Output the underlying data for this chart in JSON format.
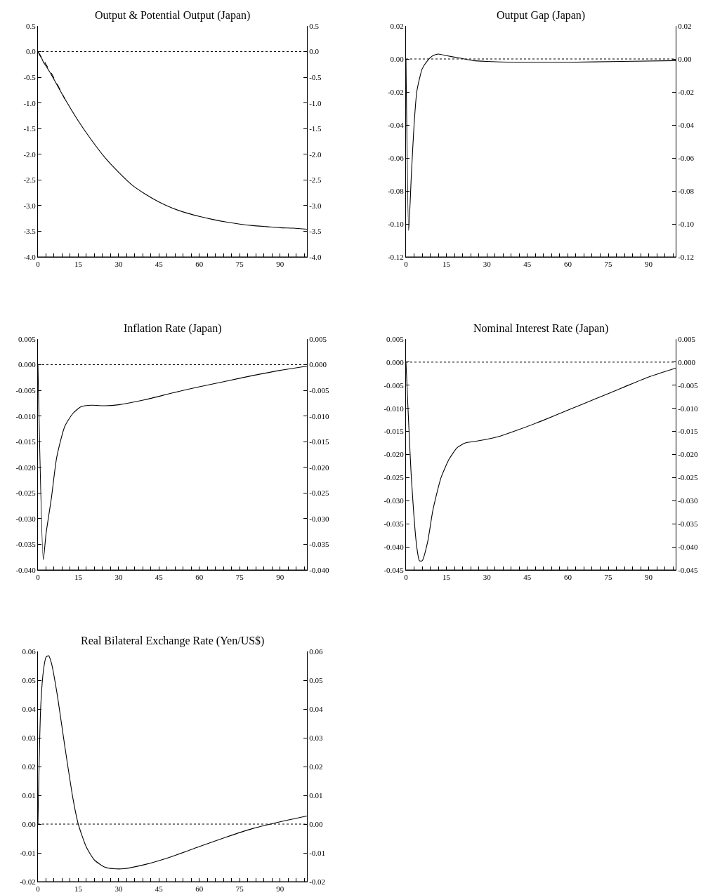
{
  "chart_data": [
    {
      "type": "line",
      "title": "Output & Potential Output (Japan)",
      "xlim": [
        0,
        100
      ],
      "xticks": [
        0,
        {
          "value": 3,
          "label": null
        },
        {
          "value": 6,
          "label": null
        },
        {
          "value": 9,
          "label": null
        },
        {
          "value": 12,
          "label": null
        },
        15,
        {
          "value": 18,
          "label": null
        },
        {
          "value": 21,
          "label": null
        },
        {
          "value": 24,
          "label": null
        },
        {
          "value": 27,
          "label": null
        },
        30,
        {
          "value": 33,
          "label": null
        },
        {
          "value": 36,
          "label": null
        },
        {
          "value": 39,
          "label": null
        },
        {
          "value": 42,
          "label": null
        },
        45,
        {
          "value": 48,
          "label": null
        },
        {
          "value": 51,
          "label": null
        },
        {
          "value": 54,
          "label": null
        },
        {
          "value": 57,
          "label": null
        },
        60,
        {
          "value": 63,
          "label": null
        },
        {
          "value": 66,
          "label": null
        },
        {
          "value": 69,
          "label": null
        },
        {
          "value": 72,
          "label": null
        },
        75,
        {
          "value": 78,
          "label": null
        },
        {
          "value": 81,
          "label": null
        },
        {
          "value": 84,
          "label": null
        },
        {
          "value": 87,
          "label": null
        },
        90,
        {
          "value": 93,
          "label": null
        },
        {
          "value": 96,
          "label": null
        },
        {
          "value": 99,
          "label": null
        }
      ],
      "ylim": [
        -4.0,
        0.5
      ],
      "yticks": [
        {
          "value": -4,
          "label": "-4.0"
        },
        {
          "value": -3.5,
          "label": "-3.5"
        },
        {
          "value": -3,
          "label": "-3.0"
        },
        {
          "value": -2.5,
          "label": "-2.5"
        },
        {
          "value": -2,
          "label": "-2.0"
        },
        {
          "value": -1.5,
          "label": "-1.5"
        },
        {
          "value": -1,
          "label": "-1.0"
        },
        {
          "value": -0.5,
          "label": "-0.5"
        },
        {
          "value": 0,
          "label": "0.0"
        },
        0.5
      ],
      "y2lim": [
        -4.0,
        0.5
      ],
      "y2ticks": [
        {
          "value": -4,
          "label": "-4.0"
        },
        {
          "value": -3.5,
          "label": "-3.5"
        },
        {
          "value": -3,
          "label": "-3.0"
        },
        {
          "value": -2.5,
          "label": "-2.5"
        },
        {
          "value": -2,
          "label": "-2.0"
        },
        {
          "value": -1.5,
          "label": "-1.5"
        },
        {
          "value": -1,
          "label": "-1.0"
        },
        {
          "value": -0.5,
          "label": "-0.5"
        },
        {
          "value": 0,
          "label": "0.0"
        },
        0.5
      ],
      "ref_lines": [
        {
          "axis": "y",
          "value": 0,
          "line_style": "dotted",
          "color": "#000000"
        }
      ],
      "series": [
        {
          "color": "#000000",
          "line_style": "solid",
          "x": [
            0,
            1,
            2,
            3,
            5,
            10,
            15,
            20,
            25,
            30,
            35,
            40,
            45,
            50,
            55,
            60,
            65,
            70,
            75,
            80,
            85,
            90,
            95,
            100
          ],
          "values": [
            0,
            -0.08,
            -0.2,
            -0.28,
            -0.45,
            -0.92,
            -1.35,
            -1.73,
            -2.07,
            -2.35,
            -2.6,
            -2.78,
            -2.93,
            -3.05,
            -3.14,
            -3.21,
            -3.27,
            -3.32,
            -3.36,
            -3.39,
            -3.41,
            -3.43,
            -3.44,
            -3.46
          ]
        },
        {
          "color": "#000000",
          "line_style": "dashed",
          "x": [
            0,
            1,
            2,
            3,
            5,
            10
          ],
          "values": [
            0,
            -0.1,
            -0.15,
            -0.25,
            -0.42,
            -0.92
          ]
        }
      ]
    },
    {
      "type": "line",
      "title": "Output Gap (Japan)",
      "xlim": [
        0,
        100
      ],
      "xticks": [
        0,
        {
          "value": 3,
          "label": null
        },
        {
          "value": 6,
          "label": null
        },
        {
          "value": 9,
          "label": null
        },
        {
          "value": 12,
          "label": null
        },
        15,
        {
          "value": 18,
          "label": null
        },
        {
          "value": 21,
          "label": null
        },
        {
          "value": 24,
          "label": null
        },
        {
          "value": 27,
          "label": null
        },
        30,
        {
          "value": 33,
          "label": null
        },
        {
          "value": 36,
          "label": null
        },
        {
          "value": 39,
          "label": null
        },
        {
          "value": 42,
          "label": null
        },
        45,
        {
          "value": 48,
          "label": null
        },
        {
          "value": 51,
          "label": null
        },
        {
          "value": 54,
          "label": null
        },
        {
          "value": 57,
          "label": null
        },
        60,
        {
          "value": 63,
          "label": null
        },
        {
          "value": 66,
          "label": null
        },
        {
          "value": 69,
          "label": null
        },
        {
          "value": 72,
          "label": null
        },
        75,
        {
          "value": 78,
          "label": null
        },
        {
          "value": 81,
          "label": null
        },
        {
          "value": 84,
          "label": null
        },
        {
          "value": 87,
          "label": null
        },
        90,
        {
          "value": 93,
          "label": null
        },
        {
          "value": 96,
          "label": null
        },
        {
          "value": 99,
          "label": null
        }
      ],
      "ylim": [
        -0.12,
        0.02
      ],
      "yticks": [
        {
          "value": -0.12,
          "label": "-0.12"
        },
        {
          "value": -0.1,
          "label": "-0.10"
        },
        {
          "value": -0.08,
          "label": "-0.08"
        },
        {
          "value": -0.06,
          "label": "-0.06"
        },
        {
          "value": -0.04,
          "label": "-0.04"
        },
        {
          "value": -0.02,
          "label": "-0.02"
        },
        {
          "value": 0,
          "label": "0.00"
        },
        0.02
      ],
      "y2lim": [
        -0.12,
        0.02
      ],
      "y2ticks": [
        {
          "value": -0.12,
          "label": "-0.12"
        },
        {
          "value": -0.1,
          "label": "-0.10"
        },
        {
          "value": -0.08,
          "label": "-0.08"
        },
        {
          "value": -0.06,
          "label": "-0.06"
        },
        {
          "value": -0.04,
          "label": "-0.04"
        },
        {
          "value": -0.02,
          "label": "-0.02"
        },
        {
          "value": 0,
          "label": "0.00"
        },
        0.02
      ],
      "ref_lines": [
        {
          "axis": "y",
          "value": 0,
          "line_style": "dotted",
          "color": "#000000"
        }
      ],
      "series": [
        {
          "color": "#000000",
          "x": [
            0,
            1,
            2,
            3,
            4,
            5,
            6,
            8,
            10,
            12,
            15,
            20,
            25,
            30,
            40,
            60,
            80,
            100
          ],
          "values": [
            0,
            -0.104,
            -0.07,
            -0.04,
            -0.02,
            -0.012,
            -0.006,
            -0.001,
            0.002,
            0.003,
            0.002,
            0.0005,
            -0.001,
            -0.0015,
            -0.002,
            -0.002,
            -0.0015,
            -0.001
          ]
        }
      ]
    },
    {
      "type": "line",
      "title": "Inflation Rate (Japan)",
      "xlim": [
        0,
        100
      ],
      "xticks": [
        0,
        {
          "value": 3,
          "label": null
        },
        {
          "value": 6,
          "label": null
        },
        {
          "value": 9,
          "label": null
        },
        {
          "value": 12,
          "label": null
        },
        15,
        {
          "value": 18,
          "label": null
        },
        {
          "value": 21,
          "label": null
        },
        {
          "value": 24,
          "label": null
        },
        {
          "value": 27,
          "label": null
        },
        30,
        {
          "value": 33,
          "label": null
        },
        {
          "value": 36,
          "label": null
        },
        {
          "value": 39,
          "label": null
        },
        {
          "value": 42,
          "label": null
        },
        45,
        {
          "value": 48,
          "label": null
        },
        {
          "value": 51,
          "label": null
        },
        {
          "value": 54,
          "label": null
        },
        {
          "value": 57,
          "label": null
        },
        60,
        {
          "value": 63,
          "label": null
        },
        {
          "value": 66,
          "label": null
        },
        {
          "value": 69,
          "label": null
        },
        {
          "value": 72,
          "label": null
        },
        75,
        {
          "value": 78,
          "label": null
        },
        {
          "value": 81,
          "label": null
        },
        {
          "value": 84,
          "label": null
        },
        {
          "value": 87,
          "label": null
        },
        90,
        {
          "value": 93,
          "label": null
        },
        {
          "value": 96,
          "label": null
        },
        {
          "value": 99,
          "label": null
        }
      ],
      "ylim": [
        -0.04,
        0.005
      ],
      "yticks": [
        {
          "value": -0.04,
          "label": "-0.040"
        },
        {
          "value": -0.035,
          "label": "-0.035"
        },
        {
          "value": -0.03,
          "label": "-0.030"
        },
        {
          "value": -0.025,
          "label": "-0.025"
        },
        {
          "value": -0.02,
          "label": "-0.020"
        },
        {
          "value": -0.015,
          "label": "-0.015"
        },
        {
          "value": -0.01,
          "label": "-0.010"
        },
        {
          "value": -0.005,
          "label": "-0.005"
        },
        {
          "value": 0,
          "label": "0.000"
        },
        0.005
      ],
      "y2lim": [
        -0.04,
        0.005
      ],
      "y2ticks": [
        {
          "value": -0.04,
          "label": "-0.040"
        },
        {
          "value": -0.035,
          "label": "-0.035"
        },
        {
          "value": -0.03,
          "label": "-0.030"
        },
        {
          "value": -0.025,
          "label": "-0.025"
        },
        {
          "value": -0.02,
          "label": "-0.020"
        },
        {
          "value": -0.015,
          "label": "-0.015"
        },
        {
          "value": -0.01,
          "label": "-0.010"
        },
        {
          "value": -0.005,
          "label": "-0.005"
        },
        {
          "value": 0,
          "label": "0.000"
        },
        0.005
      ],
      "ref_lines": [
        {
          "axis": "y",
          "value": 0,
          "line_style": "dotted",
          "color": "#000000"
        }
      ],
      "series": [
        {
          "color": "#000000",
          "x": [
            0,
            2,
            3,
            5,
            7,
            10,
            13,
            16,
            20,
            25,
            30,
            40,
            50,
            60,
            70,
            80,
            90,
            100
          ],
          "values": [
            0,
            -0.038,
            -0.033,
            -0.026,
            -0.018,
            -0.012,
            -0.0095,
            -0.0082,
            -0.0079,
            -0.008,
            -0.0078,
            -0.0068,
            -0.0055,
            -0.0043,
            -0.0032,
            -0.0021,
            -0.0011,
            -0.0003
          ]
        }
      ]
    },
    {
      "type": "line",
      "title": "Nominal Interest Rate (Japan)",
      "xlim": [
        0,
        100
      ],
      "xticks": [
        0,
        {
          "value": 3,
          "label": null
        },
        {
          "value": 6,
          "label": null
        },
        {
          "value": 9,
          "label": null
        },
        {
          "value": 12,
          "label": null
        },
        15,
        {
          "value": 18,
          "label": null
        },
        {
          "value": 21,
          "label": null
        },
        {
          "value": 24,
          "label": null
        },
        {
          "value": 27,
          "label": null
        },
        30,
        {
          "value": 33,
          "label": null
        },
        {
          "value": 36,
          "label": null
        },
        {
          "value": 39,
          "label": null
        },
        {
          "value": 42,
          "label": null
        },
        45,
        {
          "value": 48,
          "label": null
        },
        {
          "value": 51,
          "label": null
        },
        {
          "value": 54,
          "label": null
        },
        {
          "value": 57,
          "label": null
        },
        60,
        {
          "value": 63,
          "label": null
        },
        {
          "value": 66,
          "label": null
        },
        {
          "value": 69,
          "label": null
        },
        {
          "value": 72,
          "label": null
        },
        75,
        {
          "value": 78,
          "label": null
        },
        {
          "value": 81,
          "label": null
        },
        {
          "value": 84,
          "label": null
        },
        {
          "value": 87,
          "label": null
        },
        90,
        {
          "value": 93,
          "label": null
        },
        {
          "value": 96,
          "label": null
        },
        {
          "value": 99,
          "label": null
        }
      ],
      "ylim": [
        -0.045,
        0.005
      ],
      "yticks": [
        {
          "value": -0.045,
          "label": "-0.045"
        },
        {
          "value": -0.04,
          "label": "-0.040"
        },
        {
          "value": -0.035,
          "label": "-0.035"
        },
        {
          "value": -0.03,
          "label": "-0.030"
        },
        {
          "value": -0.025,
          "label": "-0.025"
        },
        {
          "value": -0.02,
          "label": "-0.020"
        },
        {
          "value": -0.015,
          "label": "-0.015"
        },
        {
          "value": -0.01,
          "label": "-0.010"
        },
        {
          "value": -0.005,
          "label": "-0.005"
        },
        {
          "value": 0,
          "label": "0.000"
        },
        0.005
      ],
      "y2lim": [
        -0.045,
        0.005
      ],
      "y2ticks": [
        {
          "value": -0.045,
          "label": "-0.045"
        },
        {
          "value": -0.04,
          "label": "-0.040"
        },
        {
          "value": -0.035,
          "label": "-0.035"
        },
        {
          "value": -0.03,
          "label": "-0.030"
        },
        {
          "value": -0.025,
          "label": "-0.025"
        },
        {
          "value": -0.02,
          "label": "-0.020"
        },
        {
          "value": -0.015,
          "label": "-0.015"
        },
        {
          "value": -0.01,
          "label": "-0.010"
        },
        {
          "value": -0.005,
          "label": "-0.005"
        },
        {
          "value": 0,
          "label": "0.000"
        },
        0.005
      ],
      "ref_lines": [
        {
          "axis": "y",
          "value": 0,
          "line_style": "dotted",
          "color": "#000000"
        }
      ],
      "series": [
        {
          "color": "#000000",
          "x": [
            0,
            2,
            4,
            5,
            6,
            8,
            10,
            13,
            16,
            19,
            22,
            25,
            30,
            35,
            40,
            50,
            60,
            70,
            80,
            90,
            100
          ],
          "values": [
            0,
            -0.025,
            -0.04,
            -0.043,
            -0.043,
            -0.039,
            -0.032,
            -0.025,
            -0.021,
            -0.0185,
            -0.0175,
            -0.0172,
            -0.0167,
            -0.016,
            -0.015,
            -0.0128,
            -0.0104,
            -0.008,
            -0.0056,
            -0.0032,
            -0.0013
          ]
        }
      ]
    },
    {
      "type": "line",
      "title": "Real Bilateral Exchange Rate (Yen/US$)",
      "xlim": [
        0,
        100
      ],
      "xticks": [
        0,
        {
          "value": 3,
          "label": null
        },
        {
          "value": 6,
          "label": null
        },
        {
          "value": 9,
          "label": null
        },
        {
          "value": 12,
          "label": null
        },
        15,
        {
          "value": 18,
          "label": null
        },
        {
          "value": 21,
          "label": null
        },
        {
          "value": 24,
          "label": null
        },
        {
          "value": 27,
          "label": null
        },
        30,
        {
          "value": 33,
          "label": null
        },
        {
          "value": 36,
          "label": null
        },
        {
          "value": 39,
          "label": null
        },
        {
          "value": 42,
          "label": null
        },
        45,
        {
          "value": 48,
          "label": null
        },
        {
          "value": 51,
          "label": null
        },
        {
          "value": 54,
          "label": null
        },
        {
          "value": 57,
          "label": null
        },
        60,
        {
          "value": 63,
          "label": null
        },
        {
          "value": 66,
          "label": null
        },
        {
          "value": 69,
          "label": null
        },
        {
          "value": 72,
          "label": null
        },
        75,
        {
          "value": 78,
          "label": null
        },
        {
          "value": 81,
          "label": null
        },
        {
          "value": 84,
          "label": null
        },
        {
          "value": 87,
          "label": null
        },
        90,
        {
          "value": 93,
          "label": null
        },
        {
          "value": 96,
          "label": null
        },
        {
          "value": 99,
          "label": null
        }
      ],
      "ylim": [
        -0.02,
        0.06
      ],
      "yticks": [
        {
          "value": -0.02,
          "label": "-0.02"
        },
        {
          "value": -0.01,
          "label": "-0.01"
        },
        {
          "value": 0,
          "label": "0.00"
        },
        0.01,
        0.02,
        0.03,
        0.04,
        0.05,
        0.06
      ],
      "y2lim": [
        -0.02,
        0.06
      ],
      "y2ticks": [
        {
          "value": -0.02,
          "label": "-0.02"
        },
        {
          "value": -0.01,
          "label": "-0.01"
        },
        {
          "value": 0,
          "label": "0.00"
        },
        0.01,
        0.02,
        0.03,
        0.04,
        0.05,
        0.06
      ],
      "ref_lines": [
        {
          "axis": "y",
          "value": 0,
          "line_style": "dotted",
          "color": "#000000"
        }
      ],
      "series": [
        {
          "color": "#000000",
          "x": [
            0,
            1,
            2,
            3,
            4,
            5,
            7,
            10,
            13,
            15,
            18,
            21,
            25,
            28,
            32,
            40,
            50,
            60,
            70,
            80,
            90,
            100
          ],
          "values": [
            0,
            0.04,
            0.053,
            0.058,
            0.0585,
            0.056,
            0.046,
            0.027,
            0.009,
            0.0,
            -0.008,
            -0.0125,
            -0.015,
            -0.0155,
            -0.0155,
            -0.014,
            -0.0112,
            -0.0078,
            -0.0045,
            -0.0015,
            0.0008,
            0.0028
          ]
        }
      ]
    }
  ]
}
